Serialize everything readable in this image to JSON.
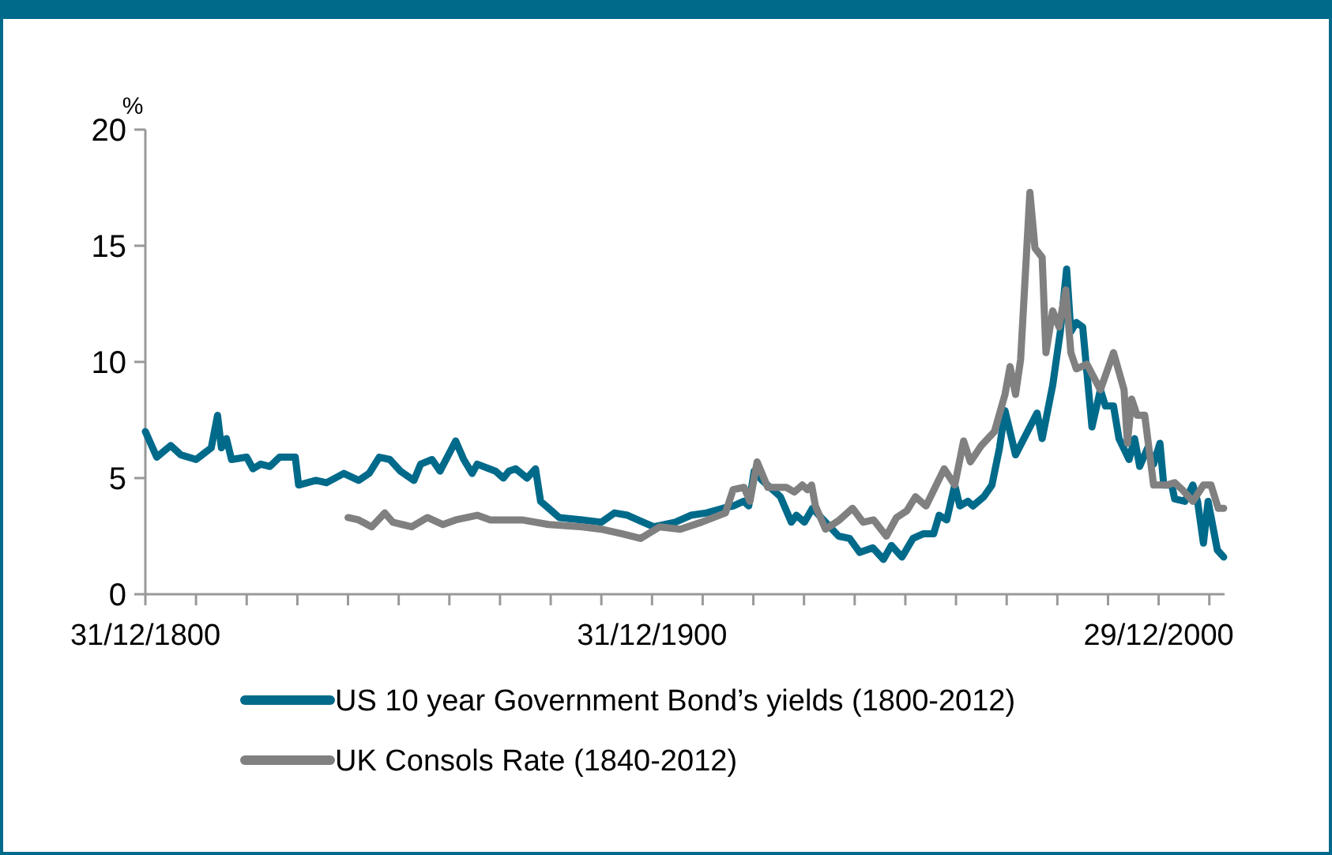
{
  "chart_data": {
    "type": "line",
    "ylabel": "%",
    "xlim": [
      "1800-12-31",
      "2014-01"
    ],
    "ylim": [
      0,
      20
    ],
    "yticks": [
      0,
      5,
      10,
      15,
      20
    ],
    "xticks": [
      {
        "value": "1800-12-31",
        "label": "31/12/1800"
      },
      {
        "value": "1810-12-31",
        "label": null
      },
      {
        "value": "1820-12-31",
        "label": null
      },
      {
        "value": "1830-12-31",
        "label": null
      },
      {
        "value": "1840-12-31",
        "label": null
      },
      {
        "value": "1850-12-31",
        "label": null
      },
      {
        "value": "1860-12-31",
        "label": null
      },
      {
        "value": "1870-12-31",
        "label": null
      },
      {
        "value": "1880-12-31",
        "label": null
      },
      {
        "value": "1890-12-31",
        "label": null
      },
      {
        "value": "1900-12-31",
        "label": "31/12/1900"
      },
      {
        "value": "1910-12-31",
        "label": null
      },
      {
        "value": "1920-12-31",
        "label": null
      },
      {
        "value": "1930-12-31",
        "label": null
      },
      {
        "value": "1940-12-31",
        "label": null
      },
      {
        "value": "1950-12-31",
        "label": null
      },
      {
        "value": "1960-12-31",
        "label": null
      },
      {
        "value": "1970-12-31",
        "label": null
      },
      {
        "value": "1980-12-31",
        "label": null
      },
      {
        "value": "1990-12-31",
        "label": null
      },
      {
        "value": "2000-12-29",
        "label": "29/12/2000"
      },
      {
        "value": "2010-12-31",
        "label": null
      }
    ],
    "grid": false,
    "legend": "bottom",
    "marker": "none",
    "line_style": "solid",
    "series": [
      {
        "name": "US 10 year Government Bond’s yields (1800-2012)",
        "color": "#006a8a",
        "x": [
          "1800-12-31",
          "1803-04",
          "1806-01",
          "1808-01",
          "1811-01",
          "1814-01",
          "1815-04",
          "1816-01",
          "1817-01",
          "1818-01",
          "1821-01",
          "1822-04",
          "1823-10",
          "1825-08",
          "1827-07",
          "1830-08",
          "1831-04",
          "1834-09",
          "1836-10",
          "1840-03",
          "1843-02",
          "1845-03",
          "1847-03",
          "1849-04",
          "1851-05",
          "1854-01",
          "1855-05",
          "1857-08",
          "1859-03",
          "1862-04",
          "1863-11",
          "1865-07",
          "1866-07",
          "1870-02",
          "1871-09",
          "1872-10",
          "1874-02",
          "1876-05",
          "1878-01",
          "1879-01",
          "1880-08",
          "1882-09",
          "1887-04",
          "1891-01",
          "1893-08",
          "1896-03",
          "1899-04",
          "1901-05",
          "1905-08",
          "1908-09",
          "1911-10",
          "1915-01",
          "1917-01",
          "1919-02",
          "1920-02",
          "1921-03",
          "1922-10",
          "1926-05",
          "1928-07",
          "1929-07",
          "1931-02",
          "1932-09",
          "1935-04",
          "1937-11",
          "1940-01",
          "1942-01",
          "1944-08",
          "1946-09",
          "1948-04",
          "1950-05",
          "1952-07",
          "1954-07",
          "1956-08",
          "1957-09",
          "1959-03",
          "1960-10",
          "1961-10",
          "1963-05",
          "1964-05",
          "1966-07",
          "1968-02",
          "1969-08",
          "1970-09",
          "1972-10",
          "1977-01",
          "1978-01",
          "1980-02",
          "1981-08",
          "1982-11",
          "1983-09",
          "1984-10",
          "1986-01",
          "1987-11",
          "1989-07",
          "1990-07",
          "1992-02",
          "1993-03",
          "1995-03",
          "1996-04",
          "1997-04",
          "1998-11",
          "2000-01",
          "2001-04",
          "2002-01",
          "2003-08",
          "2004-03",
          "2006-03",
          "2007-10",
          "2008-09",
          "2009-11",
          "2010-10",
          "2012-08",
          "2013-11"
        ],
        "values": [
          7.0,
          5.9,
          6.4,
          6.0,
          5.8,
          6.3,
          7.7,
          6.3,
          6.7,
          5.8,
          5.9,
          5.4,
          5.6,
          5.5,
          5.9,
          5.9,
          4.7,
          4.9,
          4.8,
          5.2,
          4.9,
          5.2,
          5.9,
          5.8,
          5.3,
          4.9,
          5.6,
          5.8,
          5.3,
          6.6,
          5.8,
          5.2,
          5.6,
          5.3,
          5.0,
          5.3,
          5.4,
          5.0,
          5.4,
          4.0,
          3.7,
          3.3,
          3.2,
          3.1,
          3.5,
          3.4,
          3.1,
          2.9,
          3.1,
          3.4,
          3.5,
          3.7,
          3.8,
          4.0,
          3.8,
          5.3,
          4.9,
          4.2,
          3.1,
          3.4,
          3.1,
          3.7,
          3.1,
          2.5,
          2.4,
          1.8,
          2.0,
          1.5,
          2.1,
          1.6,
          2.4,
          2.6,
          2.6,
          3.4,
          3.2,
          4.7,
          3.8,
          4.0,
          3.8,
          4.2,
          4.7,
          6.3,
          7.9,
          6.0,
          7.8,
          6.7,
          9.0,
          11.3,
          14.0,
          11.3,
          11.7,
          11.5,
          7.2,
          8.8,
          8.1,
          8.1,
          6.7,
          5.8,
          6.7,
          5.5,
          6.3,
          5.6,
          6.5,
          4.7,
          4.7,
          4.1,
          4.0,
          4.7,
          4.0,
          2.2,
          4.0,
          1.9,
          1.6
        ]
      },
      {
        "name": "UK Consols Rate (1840-2012)",
        "color": "#808080",
        "x": [
          "1841-01",
          "1843-02",
          "1845-09",
          "1848-04",
          "1849-11",
          "1853-08",
          "1856-09",
          "1859-10",
          "1862-04",
          "1866-07",
          "1869-02",
          "1875-05",
          "1880-08",
          "1887-04",
          "1891-01",
          "1895-03",
          "1898-10",
          "1902-07",
          "1906-08",
          "1910-10",
          "1915-07",
          "1917-01",
          "1919-03",
          "1920-05",
          "1921-10",
          "1923-11",
          "1927-07",
          "1929-02",
          "1930-09",
          "1931-09",
          "1932-07",
          "1933-04",
          "1935-04",
          "1938-01",
          "1940-08",
          "1942-09",
          "1944-10",
          "1947-04",
          "1949-04",
          "1951-05",
          "1953-01",
          "1955-02",
          "1958-09",
          "1960-10",
          "1962-07",
          "1963-11",
          "1966-01",
          "1968-08",
          "1970-09",
          "1971-09",
          "1972-10",
          "1973-10",
          "1975-08",
          "1976-08",
          "1978-01",
          "1978-10",
          "1980-02",
          "1981-05",
          "1982-09",
          "1983-09",
          "1984-10",
          "1986-11",
          "1989-07",
          "1992-02",
          "1994-03",
          "1994-11",
          "1995-09",
          "1996-10",
          "1998-04",
          "2000-01",
          "2002-08",
          "2004-03",
          "2005-09",
          "2007-10",
          "2009-11",
          "2011-05",
          "2012-10",
          "2013-11"
        ],
        "values": [
          3.3,
          3.2,
          2.9,
          3.5,
          3.1,
          2.9,
          3.3,
          3.0,
          3.2,
          3.4,
          3.2,
          3.2,
          3.0,
          2.9,
          2.8,
          2.6,
          2.4,
          2.9,
          2.8,
          3.1,
          3.5,
          4.5,
          4.6,
          4.0,
          5.7,
          4.6,
          4.6,
          4.4,
          4.7,
          4.5,
          4.7,
          3.8,
          2.8,
          3.2,
          3.7,
          3.1,
          3.2,
          2.5,
          3.3,
          3.6,
          4.2,
          3.8,
          5.4,
          4.7,
          6.6,
          5.7,
          6.4,
          7.0,
          8.6,
          9.8,
          8.6,
          10.1,
          17.3,
          14.9,
          14.5,
          10.4,
          12.2,
          11.5,
          13.1,
          10.4,
          9.7,
          9.9,
          8.8,
          10.4,
          8.8,
          6.5,
          8.4,
          7.7,
          7.7,
          4.7,
          4.7,
          4.8,
          4.5,
          4.0,
          4.7,
          4.7,
          3.7,
          3.7
        ]
      }
    ]
  }
}
